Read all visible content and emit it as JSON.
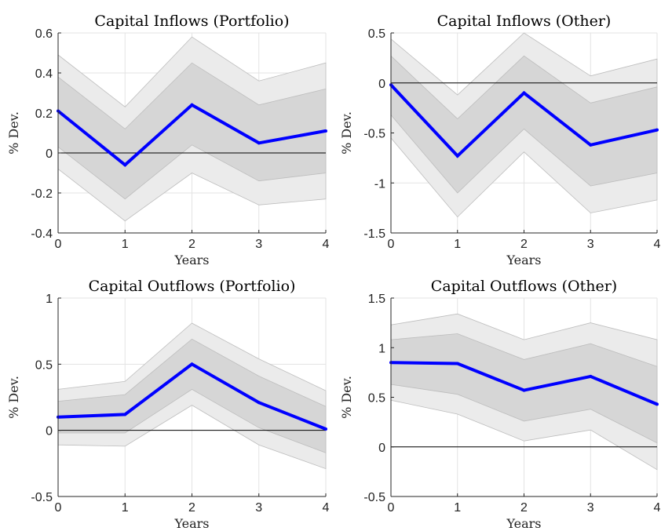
{
  "chart_data": [
    {
      "type": "line",
      "title": "Capital Inflows (Portfolio)",
      "xlabel": "Years",
      "ylabel": "% Dev.",
      "x": [
        0,
        1,
        2,
        3,
        4
      ],
      "xticks": [
        "0",
        "1",
        "2",
        "3",
        "4"
      ],
      "ylim": [
        -0.4,
        0.6
      ],
      "yticks": [
        -0.4,
        -0.2,
        0,
        0.2,
        0.4,
        0.6
      ],
      "ytick_labels": [
        "-0.4",
        "-0.2",
        "0",
        "0.2",
        "0.4",
        "0.6"
      ],
      "grid": true,
      "zero_line": true,
      "series": [
        {
          "values": [
            0.21,
            -0.06,
            0.24,
            0.05,
            0.11
          ],
          "color": "#0000ff"
        }
      ],
      "bands": [
        {
          "lower": [
            -0.08,
            -0.34,
            -0.1,
            -0.26,
            -0.23
          ],
          "upper": [
            0.49,
            0.23,
            0.58,
            0.36,
            0.45
          ]
        },
        {
          "lower": [
            0.03,
            -0.23,
            0.04,
            -0.14,
            -0.1
          ],
          "upper": [
            0.38,
            0.12,
            0.45,
            0.24,
            0.32
          ]
        }
      ]
    },
    {
      "type": "line",
      "title": "Capital Inflows (Other)",
      "xlabel": "Years",
      "ylabel": "% Dev.",
      "x": [
        0,
        1,
        2,
        3,
        4
      ],
      "xticks": [
        "0",
        "1",
        "2",
        "3",
        "4"
      ],
      "ylim": [
        -1.5,
        0.5
      ],
      "yticks": [
        -1.5,
        -1,
        -0.5,
        0,
        0.5
      ],
      "ytick_labels": [
        "-1.5",
        "-1",
        "-0.5",
        "0",
        "0.5"
      ],
      "grid": true,
      "zero_line": true,
      "series": [
        {
          "values": [
            -0.02,
            -0.73,
            -0.1,
            -0.62,
            -0.47
          ],
          "color": "#0000ff"
        }
      ],
      "bands": [
        {
          "lower": [
            -0.55,
            -1.34,
            -0.69,
            -1.3,
            -1.17
          ],
          "upper": [
            0.44,
            -0.12,
            0.5,
            0.07,
            0.24
          ]
        },
        {
          "lower": [
            -0.32,
            -1.1,
            -0.46,
            -1.03,
            -0.9
          ],
          "upper": [
            0.27,
            -0.36,
            0.27,
            -0.2,
            -0.04
          ]
        }
      ]
    },
    {
      "type": "line",
      "title": "Capital Outflows (Portfolio)",
      "xlabel": "Years",
      "ylabel": "% Dev.",
      "x": [
        0,
        1,
        2,
        3,
        4
      ],
      "xticks": [
        "0",
        "1",
        "2",
        "3",
        "4"
      ],
      "ylim": [
        -0.5,
        1
      ],
      "yticks": [
        -0.5,
        0,
        0.5,
        1
      ],
      "ytick_labels": [
        "-0.5",
        "0",
        "0.5",
        "1"
      ],
      "grid": true,
      "zero_line": true,
      "series": [
        {
          "values": [
            0.1,
            0.12,
            0.5,
            0.21,
            0.01
          ],
          "color": "#0000ff"
        }
      ],
      "bands": [
        {
          "lower": [
            -0.11,
            -0.12,
            0.19,
            -0.11,
            -0.29
          ],
          "upper": [
            0.31,
            0.37,
            0.81,
            0.54,
            0.3
          ]
        },
        {
          "lower": [
            -0.02,
            -0.02,
            0.31,
            0.02,
            -0.17
          ],
          "upper": [
            0.22,
            0.27,
            0.69,
            0.41,
            0.18
          ]
        }
      ]
    },
    {
      "type": "line",
      "title": "Capital Outflows (Other)",
      "xlabel": "Years",
      "ylabel": "% Dev.",
      "x": [
        0,
        1,
        2,
        3,
        4
      ],
      "xticks": [
        "0",
        "1",
        "2",
        "3",
        "4"
      ],
      "ylim": [
        -0.5,
        1.5
      ],
      "yticks": [
        -0.5,
        0,
        0.5,
        1,
        1.5
      ],
      "ytick_labels": [
        "-0.5",
        "0",
        "0.5",
        "1",
        "1.5"
      ],
      "grid": true,
      "zero_line": true,
      "series": [
        {
          "values": [
            0.85,
            0.84,
            0.57,
            0.71,
            0.43
          ],
          "color": "#0000ff"
        }
      ],
      "bands": [
        {
          "lower": [
            0.47,
            0.33,
            0.06,
            0.17,
            -0.23
          ],
          "upper": [
            1.23,
            1.34,
            1.08,
            1.25,
            1.08
          ]
        },
        {
          "lower": [
            0.63,
            0.53,
            0.26,
            0.38,
            0.04
          ],
          "upper": [
            1.08,
            1.14,
            0.88,
            1.04,
            0.81
          ]
        }
      ]
    }
  ]
}
